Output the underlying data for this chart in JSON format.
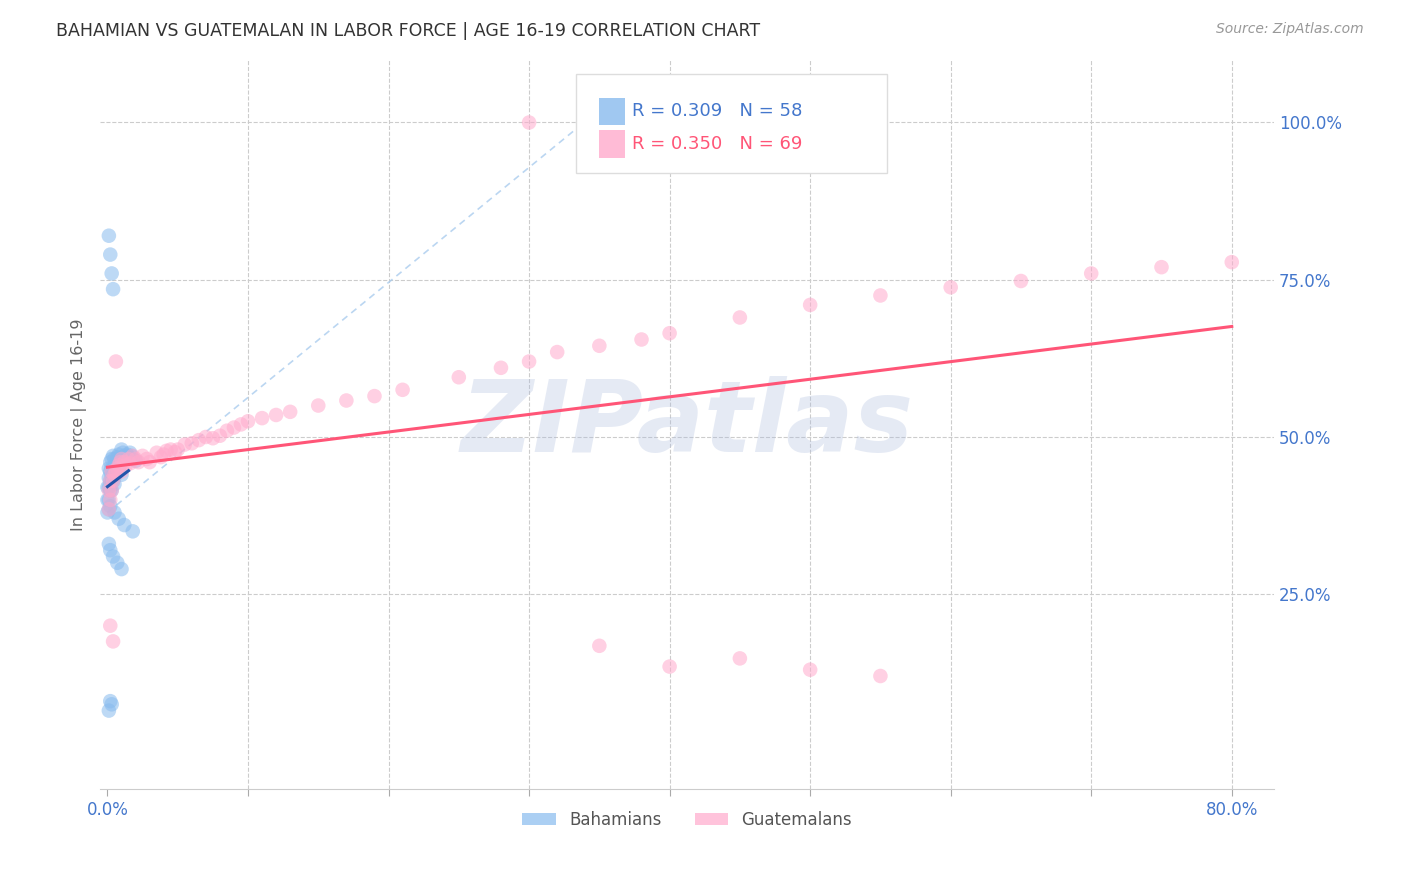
{
  "title": "BAHAMIAN VS GUATEMALAN IN LABOR FORCE | AGE 16-19 CORRELATION CHART",
  "source": "Source: ZipAtlas.com",
  "ylabel_left": "In Labor Force | Age 16-19",
  "color_blue": "#88BBEE",
  "color_pink": "#FFAACC",
  "color_blue_line": "#2255AA",
  "color_pink_line": "#FF5577",
  "color_axis_labels": "#4477CC",
  "watermark_color": "#AABBDD",
  "background_color": "#FFFFFF",
  "grid_color": "#CCCCCC",
  "diag_color": "#AACCEE",
  "xlim": [
    -0.005,
    0.83
  ],
  "ylim": [
    -0.06,
    1.1
  ],
  "seed": 42
}
